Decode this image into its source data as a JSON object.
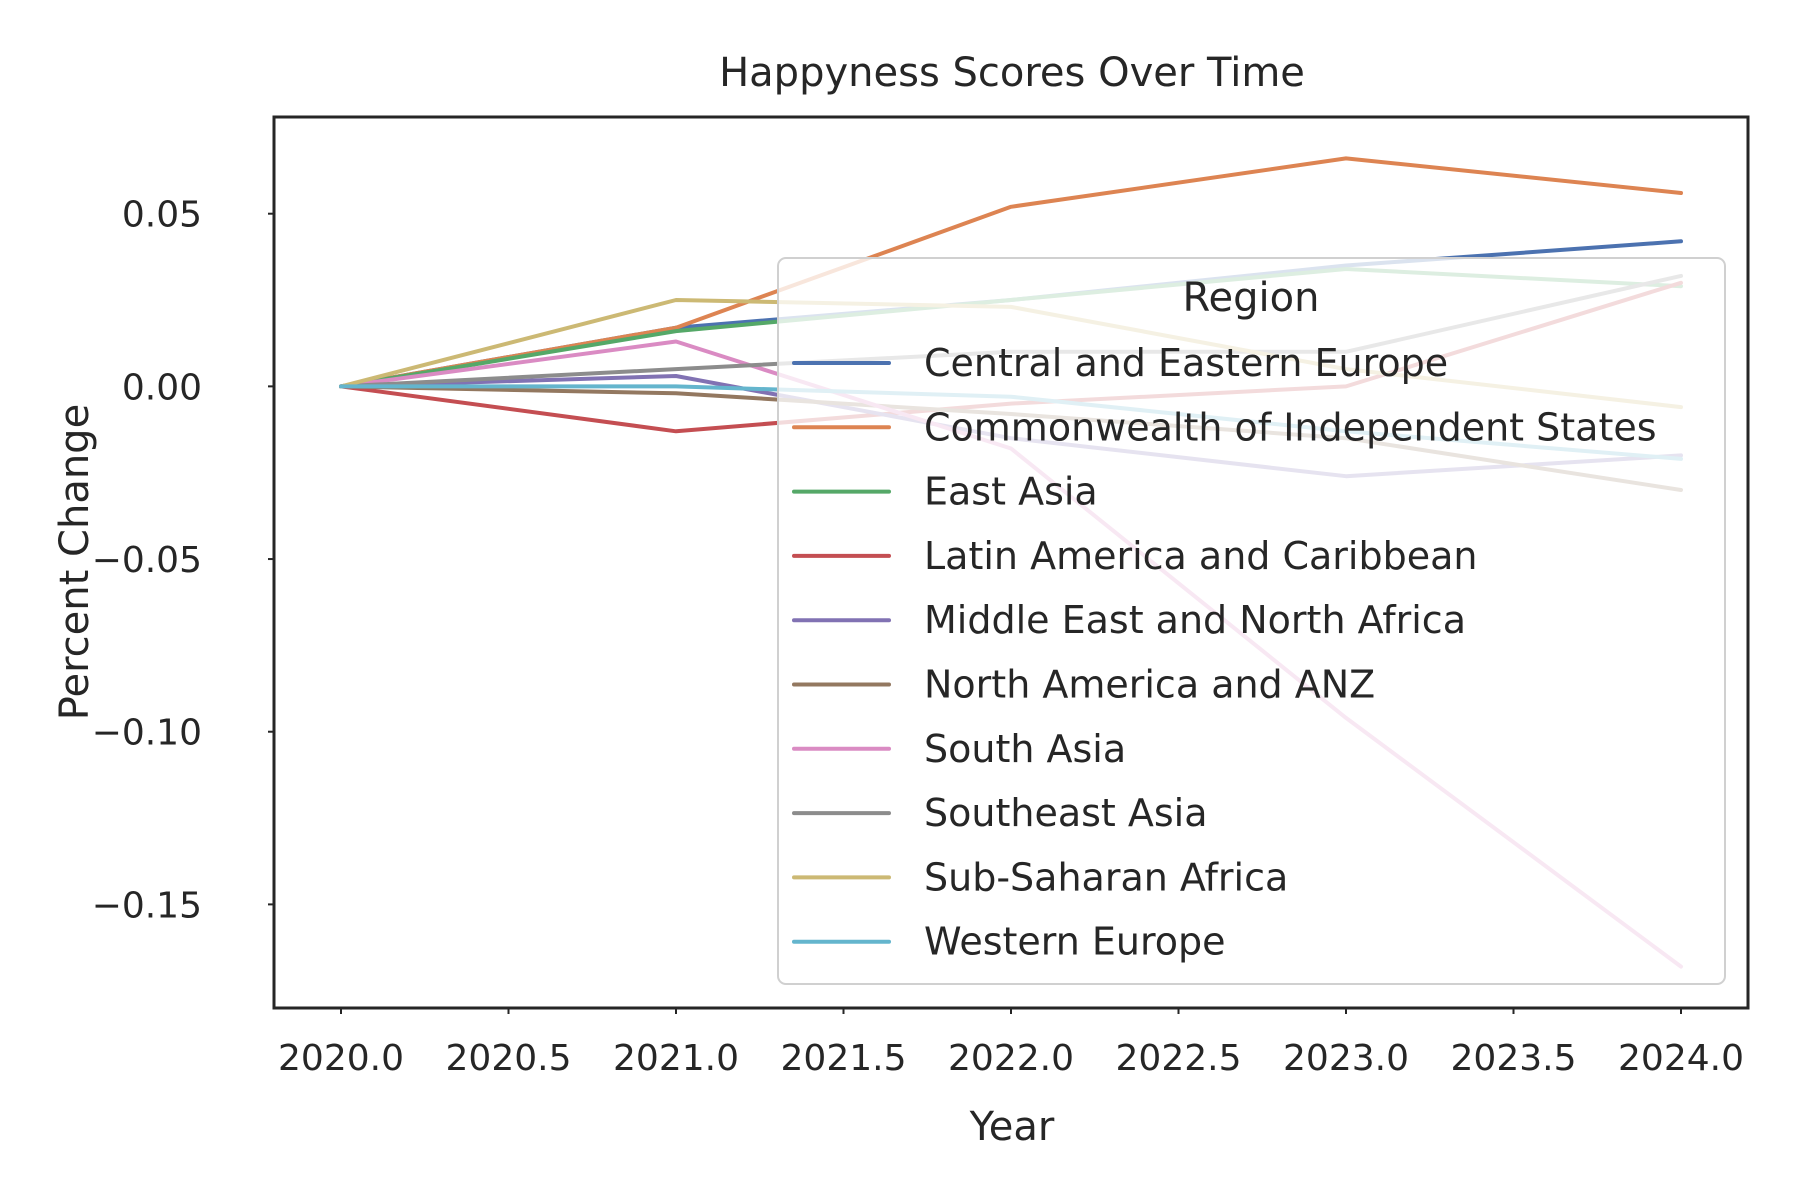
{
  "chart_data": {
    "type": "line",
    "title": "Happyness Scores Over Time",
    "xlabel": "Year",
    "ylabel": "Percent Change",
    "xlim": [
      2019.8,
      2024.2
    ],
    "ylim": [
      -0.18,
      0.078
    ],
    "x_ticks": [
      2020.0,
      2020.5,
      2021.0,
      2021.5,
      2022.0,
      2022.5,
      2023.0,
      2023.5,
      2024.0
    ],
    "x_tick_labels": [
      "2020.0",
      "2020.5",
      "2021.0",
      "2021.5",
      "2022.0",
      "2022.5",
      "2023.0",
      "2023.5",
      "2024.0"
    ],
    "y_ticks": [
      0.05,
      0.0,
      -0.05,
      -0.1,
      -0.15
    ],
    "y_tick_labels": [
      "0.05",
      "0.00",
      "−0.05",
      "−0.10",
      "−0.15"
    ],
    "grid": false,
    "legend": {
      "title": "Region",
      "location": "center-right"
    },
    "x": [
      2020,
      2021,
      2022,
      2023,
      2024
    ],
    "series": [
      {
        "name": "Central and Eastern Europe",
        "color": "#4c72b0",
        "values": [
          0.0,
          0.017,
          0.025,
          0.035,
          0.042
        ]
      },
      {
        "name": "Commonwealth of Independent States",
        "color": "#dd8452",
        "values": [
          0.0,
          0.017,
          0.052,
          0.066,
          0.056
        ]
      },
      {
        "name": "East Asia",
        "color": "#55a868",
        "values": [
          0.0,
          0.016,
          0.025,
          0.034,
          0.029
        ]
      },
      {
        "name": "Latin America and Caribbean",
        "color": "#c44e52",
        "values": [
          0.0,
          -0.013,
          -0.005,
          0.0,
          0.03
        ]
      },
      {
        "name": "Middle East and North Africa",
        "color": "#8172b3",
        "values": [
          0.0,
          0.003,
          -0.015,
          -0.026,
          -0.02
        ]
      },
      {
        "name": "North America and ANZ",
        "color": "#937860",
        "values": [
          0.0,
          -0.002,
          -0.008,
          -0.015,
          -0.03
        ]
      },
      {
        "name": "South Asia",
        "color": "#da8bc3",
        "values": [
          0.0,
          0.013,
          -0.018,
          -0.096,
          -0.168
        ]
      },
      {
        "name": "Southeast Asia",
        "color": "#8c8c8c",
        "values": [
          0.0,
          0.005,
          0.01,
          0.01,
          0.032
        ]
      },
      {
        "name": "Sub-Saharan Africa",
        "color": "#ccb974",
        "values": [
          0.0,
          0.025,
          0.023,
          0.005,
          -0.006
        ]
      },
      {
        "name": "Western Europe",
        "color": "#64b5cd",
        "values": [
          0.0,
          0.0,
          -0.003,
          -0.013,
          -0.021
        ]
      }
    ]
  }
}
